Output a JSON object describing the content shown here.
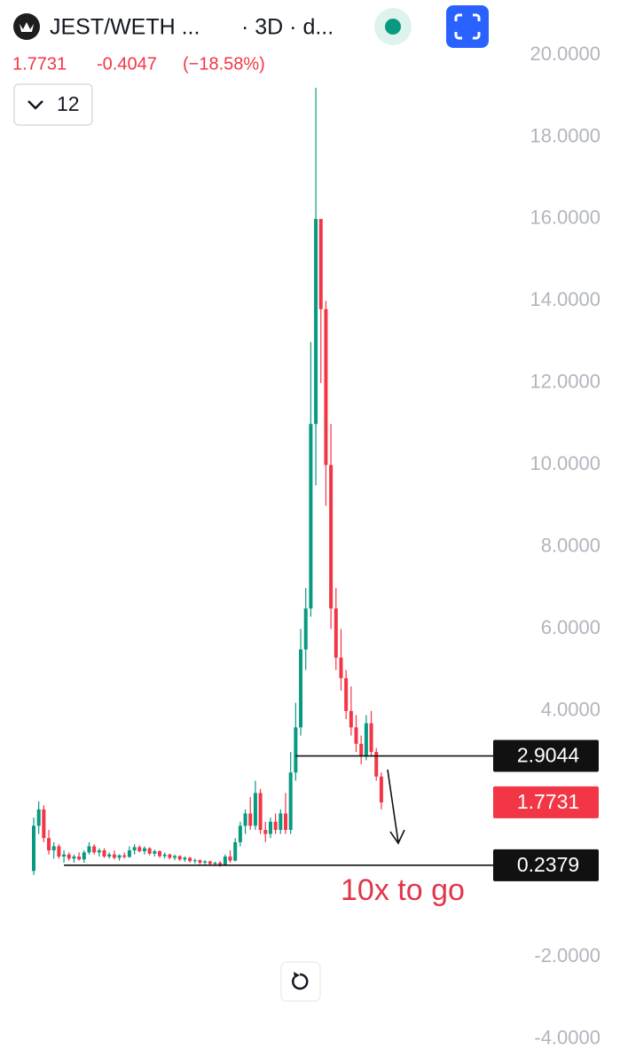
{
  "header": {
    "symbol": "JEST/WETH ...",
    "interval": "· 3D · d...",
    "price": "1.7731",
    "change": "-0.4047",
    "change_pct": "(−18.58%)",
    "indicator_count": "12"
  },
  "chart_data": {
    "type": "candlestick",
    "open": [
      0.1,
      1.2,
      1.6,
      0.9,
      0.6,
      0.7,
      0.45,
      0.5,
      0.4,
      0.45,
      0.38,
      0.55,
      0.7,
      0.55,
      0.6,
      0.45,
      0.5,
      0.42,
      0.48,
      0.44,
      0.6,
      0.68,
      0.58,
      0.65,
      0.52,
      0.58,
      0.46,
      0.5,
      0.42,
      0.46,
      0.38,
      0.42,
      0.34,
      0.36,
      0.3,
      0.33,
      0.27,
      0.3,
      0.24,
      0.45,
      0.35,
      0.8,
      1.2,
      1.5,
      1.2,
      2.0,
      1.1,
      1.0,
      1.3,
      1.1,
      1.5,
      1.1,
      2.5,
      3.6,
      5.5,
      6.5,
      11.0,
      16.0,
      13.8,
      10.0,
      6.5,
      5.3,
      4.8,
      4.0,
      3.6,
      3.2,
      2.9,
      3.7,
      3.0,
      2.4
    ],
    "high": [
      1.4,
      1.8,
      1.7,
      1.1,
      0.8,
      0.75,
      0.6,
      0.55,
      0.5,
      0.55,
      0.6,
      0.8,
      0.75,
      0.65,
      0.65,
      0.55,
      0.6,
      0.5,
      0.55,
      0.7,
      0.75,
      0.72,
      0.7,
      0.68,
      0.62,
      0.6,
      0.55,
      0.52,
      0.5,
      0.48,
      0.45,
      0.44,
      0.4,
      0.38,
      0.36,
      0.35,
      0.32,
      0.34,
      0.5,
      0.6,
      0.9,
      1.3,
      1.6,
      1.9,
      2.3,
      2.1,
      1.3,
      1.4,
      1.5,
      1.6,
      2.0,
      3.0,
      4.2,
      6.0,
      7.0,
      13.0,
      19.2,
      16.0,
      14.0,
      11.0,
      7.0,
      6.0,
      5.0,
      4.6,
      3.9,
      3.4,
      3.9,
      4.0,
      3.1,
      2.5
    ],
    "low": [
      0.0,
      1.0,
      0.8,
      0.5,
      0.4,
      0.4,
      0.3,
      0.35,
      0.3,
      0.35,
      0.3,
      0.5,
      0.5,
      0.45,
      0.42,
      0.4,
      0.38,
      0.35,
      0.4,
      0.42,
      0.5,
      0.55,
      0.5,
      0.48,
      0.45,
      0.42,
      0.4,
      0.38,
      0.36,
      0.34,
      0.32,
      0.3,
      0.28,
      0.26,
      0.25,
      0.24,
      0.22,
      0.2,
      0.22,
      0.3,
      0.33,
      0.7,
      1.0,
      1.1,
      1.1,
      1.0,
      0.8,
      0.9,
      1.0,
      1.0,
      1.0,
      1.0,
      2.3,
      3.4,
      5.0,
      6.3,
      9.5,
      12.0,
      9.0,
      6.0,
      5.0,
      4.5,
      3.8,
      3.4,
      3.0,
      2.7,
      2.8,
      2.9,
      2.3,
      1.6
    ],
    "close": [
      1.2,
      1.6,
      0.9,
      0.6,
      0.7,
      0.45,
      0.5,
      0.4,
      0.45,
      0.38,
      0.55,
      0.7,
      0.55,
      0.6,
      0.45,
      0.5,
      0.42,
      0.48,
      0.44,
      0.6,
      0.68,
      0.58,
      0.65,
      0.52,
      0.58,
      0.46,
      0.5,
      0.42,
      0.46,
      0.38,
      0.42,
      0.34,
      0.36,
      0.3,
      0.33,
      0.27,
      0.3,
      0.24,
      0.45,
      0.35,
      0.8,
      1.2,
      1.5,
      1.2,
      2.0,
      1.1,
      1.0,
      1.3,
      1.1,
      1.5,
      1.1,
      2.5,
      3.6,
      5.5,
      6.5,
      11.0,
      16.0,
      13.8,
      10.0,
      6.5,
      5.3,
      4.8,
      4.0,
      3.6,
      3.2,
      2.9,
      3.7,
      3.0,
      2.4,
      1.77
    ],
    "up_color": "#089981",
    "down_color": "#f23645",
    "ylim": [
      -4.61,
      21.34
    ],
    "yticks": [
      {
        "value": 20,
        "label": "20.0000"
      },
      {
        "value": 18,
        "label": "18.0000"
      },
      {
        "value": 16,
        "label": "16.0000"
      },
      {
        "value": 14,
        "label": "14.0000"
      },
      {
        "value": 12,
        "label": "12.0000"
      },
      {
        "value": 10,
        "label": "10.0000"
      },
      {
        "value": 8,
        "label": "8.0000"
      },
      {
        "value": 6,
        "label": "6.0000"
      },
      {
        "value": 4,
        "label": "4.0000"
      },
      {
        "value": -2,
        "label": "-2.0000"
      },
      {
        "value": -4,
        "label": "-4.0000"
      }
    ],
    "levels": [
      2.9044,
      0.2379
    ],
    "last_price": 1.7731,
    "annotation": "10x to go"
  }
}
